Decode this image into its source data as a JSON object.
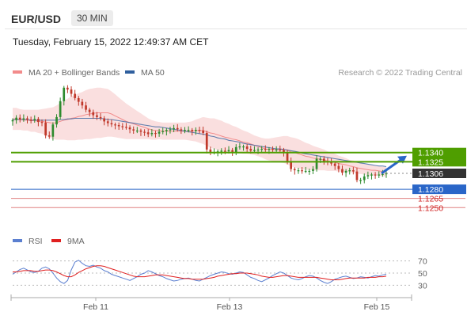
{
  "header": {
    "symbol": "EUR/USD",
    "timeframe": "30 MIN",
    "datetime": "Tuesday, February 15, 2022 12:49:37 AM CET"
  },
  "legend_top": [
    {
      "label": "MA 20 + Bollinger Bands",
      "color": "#f28b8b"
    },
    {
      "label": "MA 50",
      "color": "#2f5f9e"
    }
  ],
  "credit": "Research © 2022 Trading Central",
  "legend_rsi": [
    {
      "label": "RSI",
      "color": "#5b7fd0"
    },
    {
      "label": "9MA",
      "color": "#e02020"
    }
  ],
  "colors": {
    "up": "#2e8b2e",
    "down": "#c0392b",
    "band_fill": "#f9d9d9",
    "resistance": "#4f9e00",
    "support": "#2a66c8",
    "target": "#e08080",
    "price_tag": "#333333",
    "arrow": "#2a66c8"
  },
  "chart_data": [
    {
      "type": "candlestick",
      "x_labels": [
        "Feb 11",
        "Feb 13",
        "Feb 15"
      ],
      "levels": [
        {
          "value": 1.134,
          "label": "1.1340",
          "kind": "resistance"
        },
        {
          "value": 1.1325,
          "label": "1.1325",
          "kind": "resistance"
        },
        {
          "value": 1.1306,
          "label": "1.1306",
          "kind": "last-price"
        },
        {
          "value": 1.128,
          "label": "1.1280",
          "kind": "pivot"
        },
        {
          "value": 1.1265,
          "label": "1.1265",
          "kind": "support"
        },
        {
          "value": 1.125,
          "label": "1.1250",
          "kind": "support"
        }
      ],
      "price_path": [
        1.1393,
        1.1397,
        1.1394,
        1.1396,
        1.1394,
        1.1393,
        1.1395,
        1.139,
        1.1389,
        1.1368,
        1.1366,
        1.1386,
        1.1398,
        1.1424,
        1.1446,
        1.1443,
        1.1436,
        1.1429,
        1.1423,
        1.1417,
        1.141,
        1.1406,
        1.1401,
        1.1398,
        1.1396,
        1.1391,
        1.1388,
        1.1386,
        1.1385,
        1.1383,
        1.1382,
        1.1381,
        1.1378,
        1.1376,
        1.1376,
        1.1374,
        1.1373,
        1.137,
        1.1372,
        1.1371,
        1.1374,
        1.1375,
        1.1377,
        1.1378,
        1.138,
        1.1378,
        1.1377,
        1.1377,
        1.1377,
        1.1375,
        1.1377,
        1.1376,
        1.1372,
        1.1345,
        1.1341,
        1.1341,
        1.1342,
        1.1343,
        1.1342,
        1.1344,
        1.1341,
        1.1349,
        1.135,
        1.135,
        1.1346,
        1.1343,
        1.1344,
        1.1345,
        1.1346,
        1.1345,
        1.1346,
        1.1345,
        1.1345,
        1.1344,
        1.134,
        1.1326,
        1.1313,
        1.1311,
        1.1311,
        1.131,
        1.131,
        1.131,
        1.1313,
        1.133,
        1.133,
        1.1326,
        1.1324,
        1.1322,
        1.1318,
        1.1313,
        1.1307,
        1.131,
        1.1311,
        1.1309,
        1.1295,
        1.1295,
        1.1301,
        1.1303,
        1.1304,
        1.1303,
        1.1304,
        1.1305,
        1.1306
      ],
      "ma20_path": [
        1.1395,
        1.1395,
        1.1394,
        1.1393,
        1.1393,
        1.1392,
        1.1392,
        1.1391,
        1.1391,
        1.139,
        1.1389,
        1.1388,
        1.1389,
        1.1391,
        1.1393,
        1.1394,
        1.1396,
        1.1397,
        1.1399,
        1.14,
        1.1402,
        1.1403,
        1.1404,
        1.1405,
        1.1405,
        1.1405,
        1.1405,
        1.1403,
        1.14,
        1.1397,
        1.1394,
        1.1391,
        1.1389,
        1.1387,
        1.1385,
        1.1383,
        1.1381,
        1.1379,
        1.1377,
        1.1376,
        1.1376,
        1.1375,
        1.1375,
        1.1375,
        1.1375,
        1.1375,
        1.1375,
        1.1375,
        1.1375,
        1.1375,
        1.1376,
        1.1376,
        1.1376,
        1.1374,
        1.1372,
        1.1371,
        1.1369,
        1.1367,
        1.1365,
        1.1364,
        1.1362,
        1.1361,
        1.1359,
        1.1357,
        1.1356,
        1.1354,
        1.1352,
        1.135,
        1.1348,
        1.1346,
        1.1345,
        1.1345,
        1.1345,
        1.1345,
        1.1345,
        1.1344,
        1.1341,
        1.134,
        1.1338,
        1.1336,
        1.1334,
        1.1333,
        1.1331,
        1.133,
        1.1329,
        1.1328,
        1.1326,
        1.1325,
        1.1324,
        1.1322,
        1.1321,
        1.132,
        1.1318,
        1.1317,
        1.1315,
        1.1314,
        1.1313,
        1.1312,
        1.1311,
        1.1311,
        1.131,
        1.1309,
        1.1309
      ],
      "ma50_path": [
        1.1394,
        1.1394,
        1.1394,
        1.1394,
        1.1394,
        1.1393,
        1.1393,
        1.1393,
        1.1393,
        1.1393,
        1.1393,
        1.1393,
        1.1393,
        1.1394,
        1.1394,
        1.1395,
        1.1395,
        1.1396,
        1.1396,
        1.1396,
        1.1396,
        1.1396,
        1.1396,
        1.1396,
        1.1396,
        1.1395,
        1.1394,
        1.1394,
        1.1393,
        1.1392,
        1.1391,
        1.139,
        1.1389,
        1.1388,
        1.1387,
        1.1386,
        1.1385,
        1.1384,
        1.1383,
        1.1382,
        1.1382,
        1.1381,
        1.138,
        1.1379,
        1.1378,
        1.1377,
        1.1376,
        1.1375,
        1.1374,
        1.1373,
        1.1372,
        1.1371,
        1.137,
        1.1369,
        1.1367,
        1.1366,
        1.1364,
        1.1363,
        1.1362,
        1.136,
        1.1359,
        1.1358,
        1.1357,
        1.1355,
        1.1354,
        1.1353,
        1.1352,
        1.1351,
        1.135,
        1.1349,
        1.1348,
        1.1347,
        1.1346,
        1.1346,
        1.1345,
        1.1344,
        1.1343,
        1.1342,
        1.1341,
        1.1339,
        1.1338,
        1.1337,
        1.1336,
        1.1335,
        1.1334,
        1.1333,
        1.1332,
        1.1331,
        1.133,
        1.1329,
        1.1328,
        1.1327,
        1.1326,
        1.1325,
        1.1324,
        1.1323,
        1.1322,
        1.1321,
        1.132,
        1.1319,
        1.1318,
        1.1318,
        1.1317
      ],
      "band_halfwidth_path": [
        0.0018,
        0.0018,
        0.0017,
        0.0017,
        0.0017,
        0.0018,
        0.0018,
        0.0019,
        0.002,
        0.0022,
        0.0024,
        0.0026,
        0.0028,
        0.003,
        0.0032,
        0.0034,
        0.0036,
        0.0037,
        0.0038,
        0.0039,
        0.004,
        0.0041,
        0.0041,
        0.0041,
        0.0041,
        0.004,
        0.0039,
        0.0037,
        0.0035,
        0.0033,
        0.0031,
        0.0029,
        0.0027,
        0.0025,
        0.0023,
        0.0021,
        0.0019,
        0.0017,
        0.0016,
        0.0015,
        0.0014,
        0.0014,
        0.0014,
        0.0014,
        0.0014,
        0.0014,
        0.0014,
        0.0014,
        0.0015,
        0.0016,
        0.0018,
        0.002,
        0.0022,
        0.0023,
        0.0024,
        0.0025,
        0.0025,
        0.0025,
        0.0024,
        0.0023,
        0.0022,
        0.0021,
        0.002,
        0.0019,
        0.0018,
        0.0017,
        0.0016,
        0.0016,
        0.0016,
        0.0017,
        0.0018,
        0.0019,
        0.002,
        0.0021,
        0.0022,
        0.0023,
        0.0024,
        0.0024,
        0.0024,
        0.0023,
        0.0022,
        0.0021,
        0.002,
        0.0019,
        0.0018,
        0.0017,
        0.0016,
        0.0015,
        0.0014,
        0.0013,
        0.0012,
        0.0011,
        0.001,
        0.001,
        0.001,
        0.0009,
        0.0009,
        0.0009,
        0.0009,
        0.0008,
        0.0008,
        0.0008,
        0.0008
      ],
      "target": {
        "from": 1.1306,
        "to": 1.134
      }
    },
    {
      "type": "line",
      "name": "RSI",
      "y_ticks": [
        70,
        50,
        30
      ],
      "ylim": [
        15,
        85
      ],
      "rsi_path": [
        48,
        52,
        56,
        58,
        55,
        52,
        51,
        53,
        58,
        60,
        57,
        50,
        42,
        36,
        33,
        38,
        55,
        68,
        71,
        66,
        62,
        61,
        63,
        60,
        58,
        54,
        52,
        48,
        46,
        44,
        42,
        40,
        38,
        41,
        44,
        48,
        50,
        54,
        52,
        49,
        46,
        44,
        41,
        39,
        37,
        38,
        40,
        41,
        42,
        40,
        38,
        37,
        40,
        43,
        46,
        48,
        50,
        52,
        51,
        49,
        48,
        50,
        52,
        51,
        47,
        43,
        41,
        38,
        36,
        39,
        42,
        46,
        49,
        52,
        50,
        46,
        42,
        40,
        39,
        41,
        44,
        46,
        45,
        42,
        38,
        35,
        33,
        36,
        40,
        42,
        44,
        45,
        43,
        41,
        42,
        44,
        43,
        42,
        44,
        46,
        45,
        47,
        48
      ],
      "ma9_path": [
        52,
        52,
        53,
        54,
        54,
        54,
        53,
        53,
        54,
        55,
        55,
        54,
        52,
        49,
        46,
        44,
        44,
        47,
        51,
        54,
        57,
        59,
        61,
        62,
        62,
        61,
        59,
        57,
        55,
        53,
        51,
        49,
        47,
        45,
        44,
        44,
        44,
        45,
        46,
        47,
        47,
        47,
        46,
        45,
        44,
        43,
        42,
        41,
        41,
        40,
        40,
        40,
        40,
        41,
        42,
        43,
        45,
        46,
        47,
        48,
        49,
        49,
        50,
        50,
        50,
        49,
        48,
        47,
        45,
        44,
        43,
        43,
        44,
        45,
        46,
        46,
        45,
        44,
        43,
        43,
        43,
        43,
        43,
        43,
        42,
        41,
        40,
        39,
        39,
        39,
        40,
        41,
        42,
        42,
        42,
        42,
        42,
        43,
        43,
        43,
        44,
        44,
        45
      ]
    }
  ]
}
